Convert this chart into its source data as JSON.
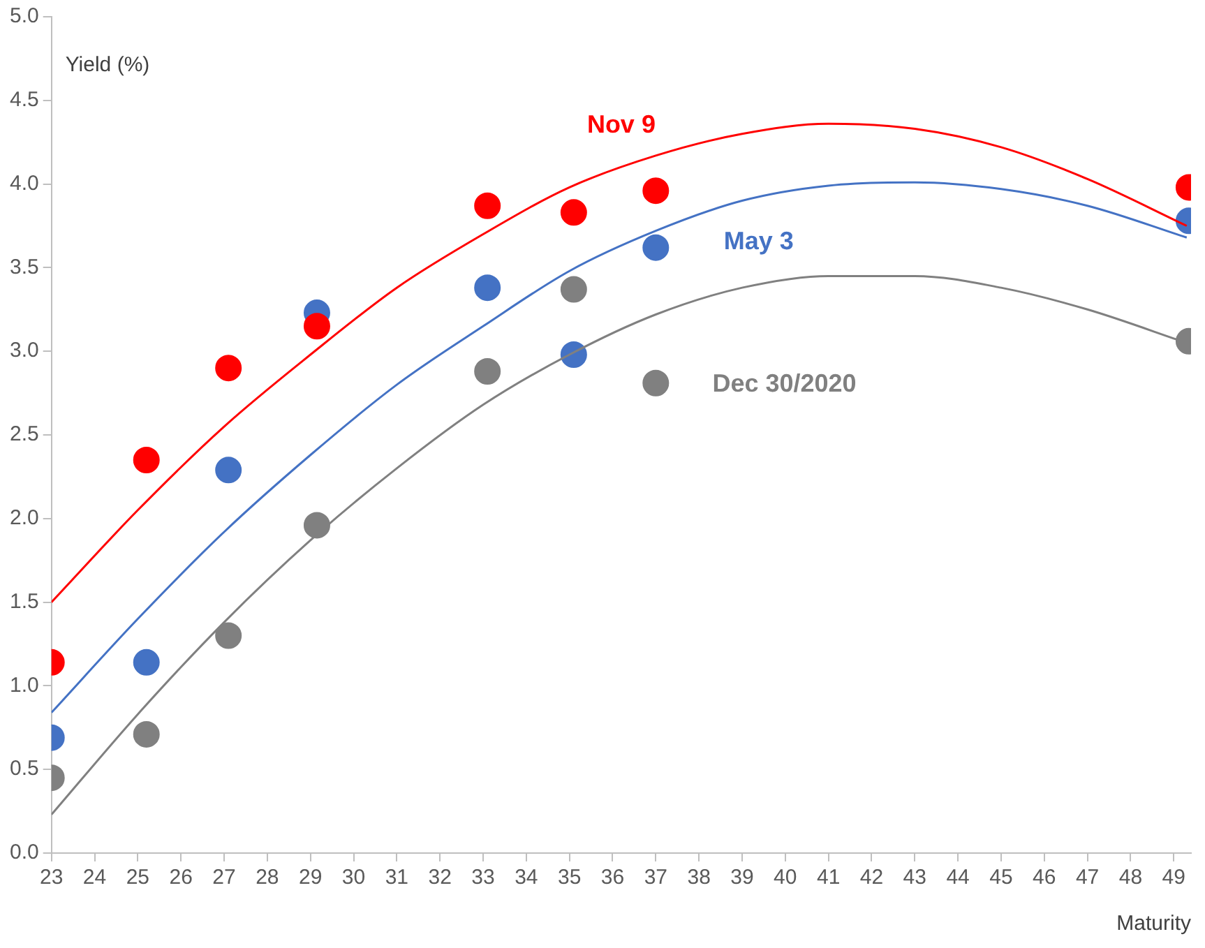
{
  "chart_data": {
    "type": "scatter",
    "xlabel": "Maturity",
    "ylabel": "Yield (%)",
    "legend": false,
    "grid": false,
    "marker": "circle",
    "xlim": [
      23,
      49.4
    ],
    "xticks": [
      23,
      24,
      25,
      26,
      27,
      28,
      29,
      30,
      31,
      32,
      33,
      34,
      35,
      36,
      37,
      38,
      39,
      40,
      41,
      42,
      43,
      44,
      45,
      46,
      47,
      48,
      49
    ],
    "ylim": [
      0,
      5
    ],
    "yticks": [
      {
        "value": 0,
        "label": "0.0"
      },
      {
        "value": 0.5,
        "label": "0.5"
      },
      {
        "value": 1,
        "label": "1.0"
      },
      {
        "value": 1.5,
        "label": "1.5"
      },
      {
        "value": 2,
        "label": "2.0"
      },
      {
        "value": 2.5,
        "label": "2.5"
      },
      {
        "value": 3,
        "label": "3.0"
      },
      {
        "value": 3.5,
        "label": "3.5"
      },
      {
        "value": 4,
        "label": "4.0"
      },
      {
        "value": 4.5,
        "label": "4.5"
      },
      {
        "value": 5,
        "label": "5.0"
      }
    ],
    "series": [
      {
        "type": "line",
        "marker": "none",
        "color": "#ff0000",
        "x": [
          23,
          25,
          27,
          29,
          31,
          33,
          35,
          37,
          39,
          41,
          43,
          45,
          47,
          49.3
        ],
        "values": [
          1.5,
          2.05,
          2.55,
          2.98,
          3.38,
          3.7,
          3.98,
          4.17,
          4.3,
          4.36,
          4.33,
          4.22,
          4.03,
          3.75
        ]
      },
      {
        "type": "line",
        "marker": "none",
        "color": "#4472c4",
        "x": [
          23,
          25,
          27,
          29,
          31,
          33,
          35,
          37,
          39,
          41,
          43,
          45,
          47,
          49.3
        ],
        "values": [
          0.84,
          1.4,
          1.92,
          2.38,
          2.8,
          3.15,
          3.48,
          3.72,
          3.9,
          3.99,
          4.01,
          3.97,
          3.87,
          3.68
        ]
      },
      {
        "type": "line",
        "marker": "none",
        "color": "#808080",
        "x": [
          23,
          25,
          27,
          29,
          31,
          33,
          35,
          37,
          39,
          41,
          43,
          45,
          47,
          49.3
        ],
        "values": [
          0.23,
          0.83,
          1.38,
          1.87,
          2.3,
          2.68,
          2.98,
          3.22,
          3.38,
          3.45,
          3.45,
          3.38,
          3.25,
          3.05
        ]
      },
      {
        "name": "Nov 9",
        "color": "#ff0000",
        "x": [
          23,
          25.2,
          27.1,
          29.15,
          33.1,
          35.1,
          37,
          49.35
        ],
        "values": [
          1.14,
          2.35,
          2.9,
          3.15,
          3.87,
          3.83,
          3.96,
          3.98
        ]
      },
      {
        "name": "May 3",
        "color": "#4472c4",
        "x": [
          23,
          25.2,
          27.1,
          29.15,
          33.1,
          35.1,
          37,
          49.35
        ],
        "values": [
          0.69,
          1.14,
          2.29,
          3.23,
          3.38,
          2.98,
          3.62,
          3.78
        ]
      },
      {
        "name": "Dec 30/2020",
        "color": "#808080",
        "x": [
          23,
          25.2,
          27.1,
          29.15,
          33.1,
          35.1,
          37,
          49.35
        ],
        "values": [
          0.45,
          0.71,
          1.3,
          1.96,
          2.88,
          3.37,
          2.81,
          3.06
        ]
      }
    ]
  }
}
